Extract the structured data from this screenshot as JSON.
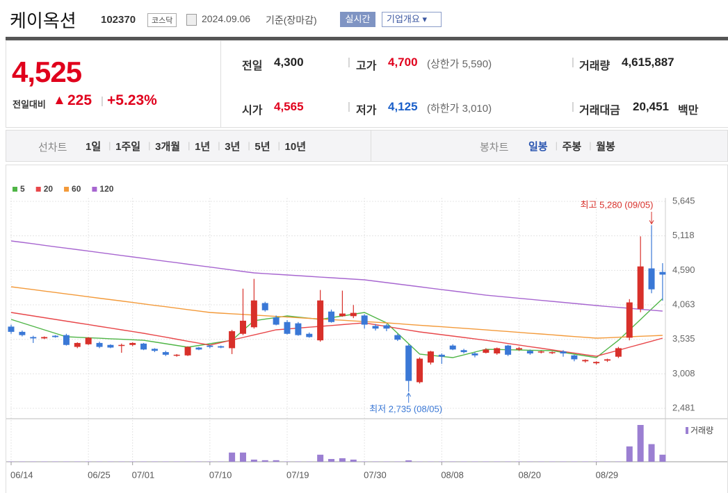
{
  "header": {
    "title": "케이옥션",
    "code": "102370",
    "market": "코스닥",
    "date": "2024.09.06",
    "basis": "기준(장마감)",
    "buttons": [
      "실시간",
      "기업개요"
    ]
  },
  "price": {
    "current": "4,525",
    "change_label": "전일대비",
    "change": "225",
    "change_rate": "+5.23%"
  },
  "stats": [
    {
      "label": "전일",
      "value": "4,300"
    },
    {
      "label": "고가",
      "value": "4,700",
      "note": "(상한가 5,590)"
    },
    {
      "label": "거래량",
      "value": "4,615,887"
    },
    {
      "label": "시가",
      "value": "4,565"
    },
    {
      "label": "저가",
      "value": "4,125",
      "note": "(하한가 3,010)"
    },
    {
      "label": "거래대금",
      "value": "20,451",
      "unit": "백만"
    }
  ],
  "line_chart": {
    "label": "선차트",
    "periods": [
      "1일",
      "1주일",
      "3개월",
      "1년",
      "3년",
      "5년",
      "10년"
    ]
  },
  "candle_chart": {
    "label": "봉차트",
    "periods": [
      "일봉",
      "주봉",
      "월봉"
    ]
  },
  "chart_data": {
    "type": "candlestick",
    "categories": [
      "06/14",
      null,
      null,
      null,
      null,
      null,
      null,
      "06/25",
      null,
      null,
      null,
      "07/01",
      null,
      null,
      null,
      null,
      null,
      null,
      "07/10",
      null,
      null,
      null,
      null,
      null,
      null,
      "07/19",
      null,
      null,
      null,
      null,
      null,
      null,
      "07/30",
      null,
      null,
      null,
      null,
      null,
      null,
      "08/08",
      null,
      null,
      null,
      null,
      null,
      null,
      "08/20",
      null,
      null,
      null,
      null,
      null,
      null,
      "08/29",
      null,
      null,
      null,
      null,
      null,
      null
    ],
    "open": [
      3730,
      3650,
      3570,
      3550,
      3590,
      3600,
      3420,
      3460,
      3480,
      3450,
      3440,
      3450,
      3470,
      3390,
      3340,
      3290,
      3290,
      3410,
      3440,
      3430,
      3400,
      3620,
      3720,
      4090,
      3870,
      3800,
      3780,
      3620,
      3520,
      3960,
      3890,
      3890,
      3900,
      3740,
      3750,
      3600,
      3440,
      2880,
      3180,
      3300,
      3440,
      3370,
      3320,
      3330,
      3320,
      3440,
      3380,
      3360,
      3340,
      3330,
      3350,
      3290,
      3200,
      3170,
      3210,
      3270,
      3560,
      4000,
      4620,
      4565
    ],
    "high": [
      3760,
      3670,
      3590,
      3580,
      3600,
      3620,
      3490,
      3570,
      3500,
      3460,
      3470,
      3490,
      3480,
      3400,
      3360,
      3310,
      3430,
      3420,
      3450,
      3440,
      3680,
      4310,
      4460,
      4110,
      3900,
      3830,
      3800,
      3640,
      4290,
      3990,
      4280,
      4060,
      3920,
      3770,
      3770,
      3620,
      3460,
      3260,
      3360,
      3320,
      3460,
      3390,
      3340,
      3400,
      3410,
      3450,
      3420,
      3380,
      3360,
      3350,
      3370,
      3300,
      3230,
      3200,
      3240,
      3420,
      4150,
      5110,
      5280,
      4700
    ],
    "low": [
      3620,
      3580,
      3480,
      3540,
      3560,
      3440,
      3400,
      3450,
      3400,
      3400,
      3330,
      3430,
      3370,
      3340,
      3280,
      3270,
      3280,
      3370,
      3400,
      3400,
      3310,
      3600,
      3700,
      3960,
      3750,
      3610,
      3590,
      3560,
      3500,
      3790,
      3880,
      3860,
      3700,
      3670,
      3660,
      3510,
      2735,
      2860,
      3150,
      3160,
      3370,
      3320,
      3260,
      3320,
      3300,
      3280,
      3360,
      3300,
      3320,
      3310,
      3270,
      3200,
      3180,
      3150,
      3190,
      3250,
      3520,
      3950,
      4240,
      4125
    ],
    "close": [
      3650,
      3600,
      3550,
      3570,
      3570,
      3450,
      3480,
      3560,
      3420,
      3410,
      3450,
      3480,
      3380,
      3360,
      3300,
      3300,
      3420,
      3380,
      3420,
      3410,
      3660,
      3820,
      4130,
      3980,
      3760,
      3620,
      3600,
      3570,
      4130,
      3800,
      3930,
      3940,
      3760,
      3700,
      3700,
      3530,
      2900,
      3240,
      3350,
      3270,
      3380,
      3340,
      3290,
      3380,
      3400,
      3300,
      3400,
      3320,
      3350,
      3340,
      3320,
      3230,
      3220,
      3190,
      3230,
      3400,
      4100,
      4650,
      4300,
      4525
    ],
    "up_color": "#d8302a",
    "down_color": "#3a78d6",
    "series": [
      {
        "name": "5",
        "color": "#4fb546",
        "values": [
          3840,
          3787,
          3734,
          3681,
          3628,
          3575,
          3567,
          3560,
          3552,
          3544,
          3536,
          3529,
          3521,
          3495,
          3468,
          3442,
          3415,
          3442,
          3468,
          3495,
          3521,
          3671,
          3820,
          3844,
          3869,
          3893,
          3875,
          3858,
          3840,
          3867,
          3893,
          3920,
          3946,
          3867,
          3787,
          3628,
          3468,
          3309,
          3291,
          3274,
          3256,
          3298,
          3341,
          3383,
          3380,
          3376,
          3373,
          3369,
          3366,
          3362,
          3336,
          3309,
          3283,
          3256,
          3389,
          3521,
          3680,
          3839,
          3999,
          4158
        ]
      },
      {
        "name": "20",
        "color": "#e8474a",
        "values": [
          3946,
          3920,
          3893,
          3867,
          3840,
          3814,
          3787,
          3761,
          3734,
          3708,
          3681,
          3655,
          3628,
          3598,
          3568,
          3537,
          3507,
          3477,
          3447,
          3486,
          3525,
          3564,
          3603,
          3642,
          3681,
          3694,
          3707,
          3721,
          3734,
          3747,
          3760,
          3774,
          3787,
          3759,
          3732,
          3704,
          3677,
          3649,
          3628,
          3606,
          3585,
          3564,
          3542,
          3521,
          3497,
          3472,
          3448,
          3423,
          3399,
          3375,
          3350,
          3326,
          3301,
          3277,
          3323,
          3369,
          3415,
          3461,
          3507,
          3553
        ]
      },
      {
        "name": "60",
        "color": "#f39a3a",
        "values": [
          4339,
          4317,
          4295,
          4273,
          4252,
          4230,
          4208,
          4186,
          4164,
          4143,
          4121,
          4099,
          4077,
          4055,
          4034,
          4012,
          3990,
          3968,
          3946,
          3936,
          3926,
          3916,
          3906,
          3896,
          3886,
          3876,
          3866,
          3856,
          3847,
          3837,
          3827,
          3817,
          3807,
          3797,
          3787,
          3775,
          3763,
          3751,
          3739,
          3728,
          3716,
          3704,
          3692,
          3680,
          3667,
          3655,
          3642,
          3629,
          3617,
          3604,
          3591,
          3578,
          3566,
          3553,
          3560,
          3567,
          3575,
          3582,
          3589,
          3596
        ]
      },
      {
        "name": "120",
        "color": "#a766d0",
        "values": [
          5040,
          5018,
          4996,
          4973,
          4951,
          4929,
          4907,
          4885,
          4862,
          4840,
          4818,
          4796,
          4773,
          4751,
          4729,
          4707,
          4684,
          4662,
          4640,
          4618,
          4596,
          4573,
          4551,
          4540,
          4530,
          4519,
          4509,
          4498,
          4487,
          4477,
          4466,
          4456,
          4445,
          4424,
          4403,
          4381,
          4360,
          4339,
          4317,
          4296,
          4275,
          4254,
          4232,
          4211,
          4195,
          4179,
          4163,
          4147,
          4131,
          4116,
          4100,
          4084,
          4068,
          4052,
          4038,
          4024,
          4010,
          3995,
          3981,
          3967
        ]
      }
    ],
    "volume": {
      "name": "거래량",
      "color": "#9b7fd2",
      "values": [
        200000,
        200000,
        200000,
        200000,
        200000,
        200000,
        200000,
        200000,
        200000,
        200000,
        200000,
        200000,
        200000,
        200000,
        200000,
        200000,
        200000,
        200000,
        200000,
        200000,
        6000000,
        6000000,
        1400000,
        1000000,
        1000000,
        200000,
        200000,
        200000,
        4600000,
        1800000,
        2300000,
        1400000,
        200000,
        200000,
        200000,
        200000,
        900000,
        200000,
        200000,
        200000,
        200000,
        200000,
        200000,
        200000,
        200000,
        200000,
        200000,
        200000,
        200000,
        200000,
        200000,
        200000,
        200000,
        200000,
        200000,
        200000,
        10000000,
        24000000,
        11500000,
        4615887
      ]
    },
    "ylim": [
      2322,
      5666
    ],
    "yticks": [
      {
        "value": 2481,
        "label": "2,481"
      },
      {
        "value": 3008,
        "label": "3,008"
      },
      {
        "value": 3535,
        "label": "3,535"
      },
      {
        "value": 4063,
        "label": "4,063"
      },
      {
        "value": 4590,
        "label": "4,590"
      },
      {
        "value": 5118,
        "label": "5,118"
      },
      {
        "value": 5645,
        "label": "5,645"
      }
    ],
    "grid": true,
    "annotations": [
      "최고 5,280 (09/05)",
      "최저 2,735 (08/05)"
    ]
  }
}
